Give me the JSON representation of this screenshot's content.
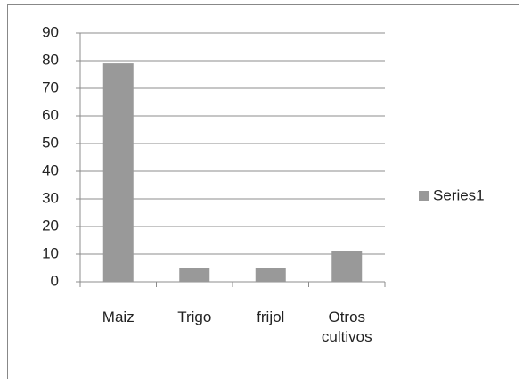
{
  "chart_data": {
    "type": "bar",
    "categories": [
      "Maiz",
      "Trigo",
      "frijol",
      "Otros cultivos"
    ],
    "series": [
      {
        "name": "Series1",
        "color": "#999999",
        "values": [
          79,
          5,
          5,
          11
        ]
      }
    ],
    "ylim": [
      0,
      90
    ],
    "yticks": [
      0,
      10,
      20,
      30,
      40,
      50,
      60,
      70,
      80,
      90
    ],
    "grid": true,
    "legend": "right"
  }
}
